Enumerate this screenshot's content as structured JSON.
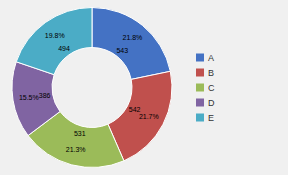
{
  "chart_data": {
    "type": "donut",
    "categories": [
      "A",
      "B",
      "C",
      "D",
      "E"
    ],
    "values": [
      543,
      542,
      531,
      386,
      494
    ],
    "percentages": [
      21.8,
      21.7,
      21.3,
      15.5,
      19.8
    ],
    "percentage_labels": [
      "21.8%",
      "21.7%",
      "21.3%",
      "15.5%",
      "19.8%"
    ],
    "colors": [
      "#4472C4",
      "#C0504D",
      "#9BBB59",
      "#8064A2",
      "#4BACC6"
    ],
    "data_labels": true,
    "legend": "right"
  }
}
